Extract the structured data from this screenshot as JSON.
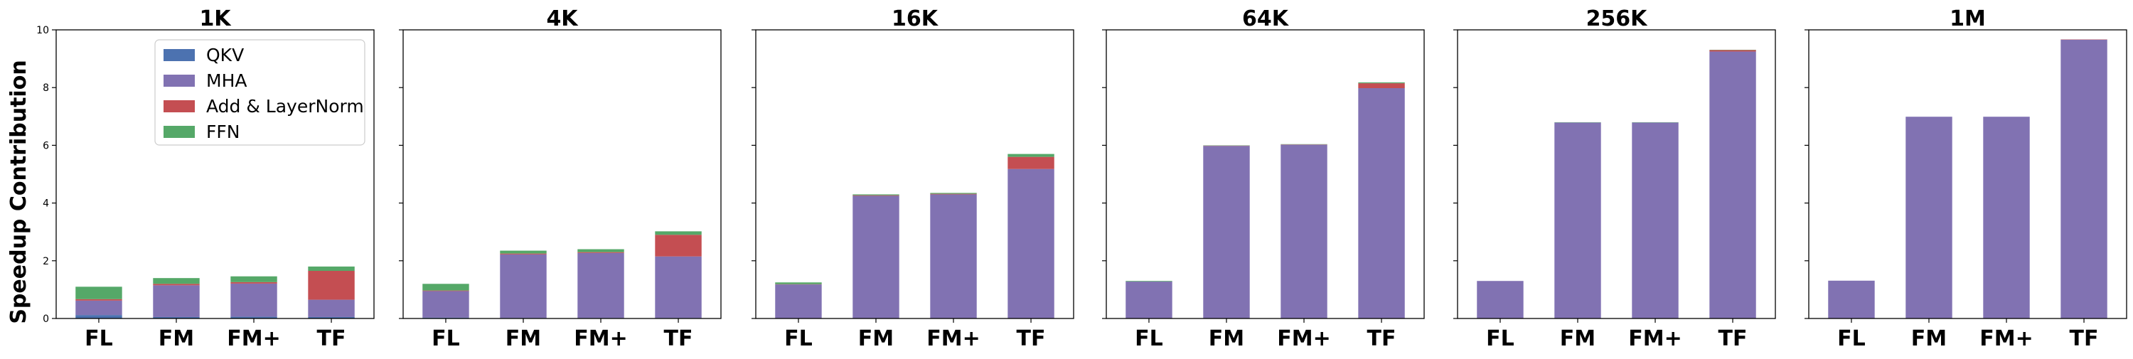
{
  "colors": {
    "QKV": "#4c72b0",
    "MHA": "#8172b2",
    "Add & LayerNorm": "#c44e52",
    "FFN": "#55a868"
  },
  "legend_placement": "top-right of first panel",
  "chart_data": {
    "type": "bar",
    "stacked": true,
    "ylabel": "Speedup Contribution",
    "ylim": [
      0,
      10
    ],
    "yticks": [
      0,
      2,
      4,
      6,
      8,
      10
    ],
    "grid": false,
    "series_names": [
      "QKV",
      "MHA",
      "Add & LayerNorm",
      "FFN"
    ],
    "categories": [
      "FL",
      "FM",
      "FM+",
      "TF"
    ],
    "panels": [
      {
        "title": "1K",
        "series": [
          {
            "name": "QKV",
            "values": [
              0.12,
              0.05,
              0.06,
              0.05
            ]
          },
          {
            "name": "MHA",
            "values": [
              0.5,
              1.1,
              1.15,
              0.6
            ]
          },
          {
            "name": "Add & LayerNorm",
            "values": [
              0.05,
              0.05,
              0.05,
              1.0
            ]
          },
          {
            "name": "FFN",
            "values": [
              0.43,
              0.2,
              0.2,
              0.15
            ]
          }
        ]
      },
      {
        "title": "4K",
        "series": [
          {
            "name": "QKV",
            "values": [
              0.03,
              0.02,
              0.02,
              0.02
            ]
          },
          {
            "name": "MHA",
            "values": [
              0.92,
              2.2,
              2.25,
              2.13
            ]
          },
          {
            "name": "Add & LayerNorm",
            "values": [
              0.02,
              0.03,
              0.03,
              0.75
            ]
          },
          {
            "name": "FFN",
            "values": [
              0.23,
              0.1,
              0.1,
              0.12
            ]
          }
        ]
      },
      {
        "title": "16K",
        "series": [
          {
            "name": "QKV",
            "values": [
              0.01,
              0.01,
              0.01,
              0.01
            ]
          },
          {
            "name": "MHA",
            "values": [
              1.17,
              4.24,
              4.29,
              5.17
            ]
          },
          {
            "name": "Add & LayerNorm",
            "values": [
              0.01,
              0.02,
              0.02,
              0.42
            ]
          },
          {
            "name": "FFN",
            "values": [
              0.06,
              0.03,
              0.03,
              0.1
            ]
          }
        ]
      },
      {
        "title": "64K",
        "series": [
          {
            "name": "QKV",
            "values": [
              0.0,
              0.0,
              0.0,
              0.0
            ]
          },
          {
            "name": "MHA",
            "values": [
              1.28,
              5.98,
              6.02,
              7.98
            ]
          },
          {
            "name": "Add & LayerNorm",
            "values": [
              0.0,
              0.01,
              0.01,
              0.17
            ]
          },
          {
            "name": "FFN",
            "values": [
              0.02,
              0.01,
              0.01,
              0.03
            ]
          }
        ]
      },
      {
        "title": "256K",
        "series": [
          {
            "name": "QKV",
            "values": [
              0.0,
              0.0,
              0.0,
              0.0
            ]
          },
          {
            "name": "MHA",
            "values": [
              1.3,
              6.79,
              6.79,
              9.25
            ]
          },
          {
            "name": "Add & LayerNorm",
            "values": [
              0.0,
              0.0,
              0.0,
              0.05
            ]
          },
          {
            "name": "FFN",
            "values": [
              0.0,
              0.01,
              0.01,
              0.01
            ]
          }
        ]
      },
      {
        "title": "1M",
        "series": [
          {
            "name": "QKV",
            "values": [
              0.0,
              0.0,
              0.0,
              0.0
            ]
          },
          {
            "name": "MHA",
            "values": [
              1.31,
              6.99,
              6.99,
              9.66
            ]
          },
          {
            "name": "Add & LayerNorm",
            "values": [
              0.0,
              0.0,
              0.0,
              0.01
            ]
          },
          {
            "name": "FFN",
            "values": [
              0.0,
              0.0,
              0.0,
              0.0
            ]
          }
        ]
      }
    ]
  }
}
